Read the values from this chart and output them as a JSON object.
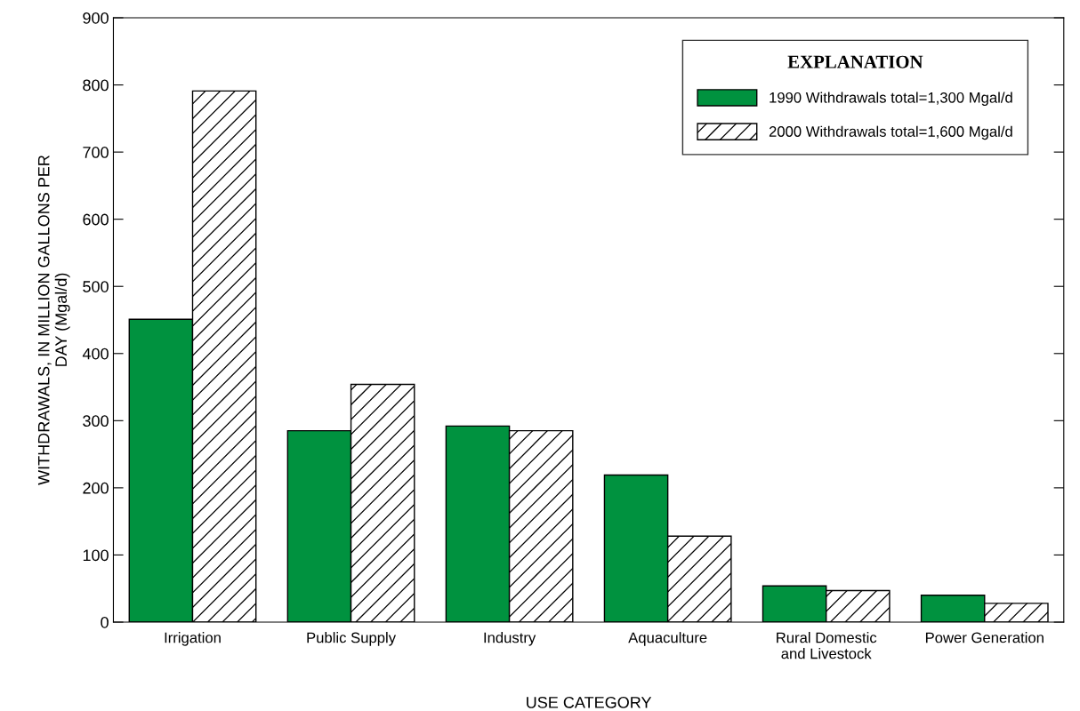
{
  "chart_data": {
    "type": "bar",
    "xlabel": "USE CATEGORY",
    "ylabel": "WITHDRAWALS, IN MILLION GALLONS PER\nDAY (Mgal/d)",
    "legend_title": "EXPLANATION",
    "categories": [
      "Irrigation",
      "Public Supply",
      "Industry",
      "Aquaculture",
      "Rural Domestic\nand Livestock",
      "Power Generation"
    ],
    "series": [
      {
        "name": "1990 Withdrawals total=1,300 Mgal/d",
        "color": "#00923f",
        "values": [
          451,
          285,
          292,
          219,
          54,
          40
        ]
      },
      {
        "name": "2000 Withdrawals total=1,600 Mgal/d",
        "color": "#ffffff",
        "values": [
          791,
          354,
          285,
          128,
          47,
          28
        ]
      }
    ],
    "ylim": [
      0,
      900
    ],
    "yticks": [
      0,
      100,
      200,
      300,
      400,
      500,
      600,
      700,
      800,
      900
    ],
    "grid": false,
    "legend": "top right"
  }
}
